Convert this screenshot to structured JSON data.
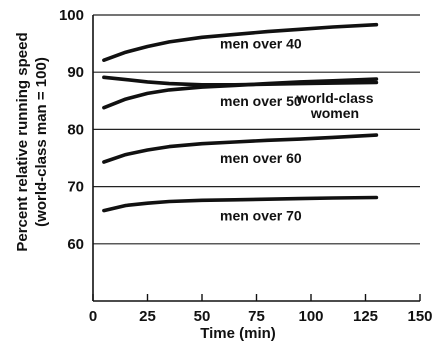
{
  "chart_data": {
    "type": "line",
    "title": "",
    "xlabel": "Time (min)",
    "ylabel": "Percent relative running speed",
    "ylabel_sub": "(world-class man = 100)",
    "xlim": [
      0,
      150
    ],
    "ylim": [
      50,
      100
    ],
    "x_ticks": [
      0,
      25,
      50,
      75,
      100,
      125,
      150
    ],
    "y_ticks": [
      60,
      70,
      80,
      90,
      100
    ],
    "grid": "horizontal",
    "legend": "none",
    "series": [
      {
        "name": "men over 40",
        "label_lines": [
          "men over 40"
        ],
        "color": "#111111",
        "x": [
          5,
          15,
          25,
          35,
          50,
          65,
          80,
          95,
          110,
          130
        ],
        "y": [
          92.1,
          93.5,
          94.5,
          95.3,
          96.1,
          96.6,
          97.1,
          97.5,
          97.9,
          98.3
        ]
      },
      {
        "name": "men over 50",
        "label_lines": [
          "men over 50"
        ],
        "color": "#111111",
        "x": [
          5,
          15,
          25,
          35,
          50,
          65,
          80,
          95,
          110,
          130
        ],
        "y": [
          83.8,
          85.3,
          86.3,
          86.9,
          87.4,
          87.7,
          88.0,
          88.3,
          88.5,
          88.8
        ]
      },
      {
        "name": "world-class women",
        "label_lines": [
          "world-class",
          "women"
        ],
        "color": "#111111",
        "x": [
          5,
          15,
          25,
          35,
          50,
          65,
          80,
          95,
          110,
          130
        ],
        "y": [
          89.1,
          88.7,
          88.3,
          88.0,
          87.8,
          87.8,
          87.9,
          88.0,
          88.1,
          88.2
        ]
      },
      {
        "name": "men over 60",
        "label_lines": [
          "men over 60"
        ],
        "color": "#111111",
        "x": [
          5,
          15,
          25,
          35,
          50,
          65,
          80,
          95,
          110,
          130
        ],
        "y": [
          74.3,
          75.6,
          76.4,
          77.0,
          77.5,
          77.8,
          78.1,
          78.3,
          78.6,
          79.0
        ]
      },
      {
        "name": "men over 70",
        "label_lines": [
          "men over 70"
        ],
        "color": "#111111",
        "x": [
          5,
          15,
          25,
          35,
          50,
          65,
          80,
          95,
          110,
          130
        ],
        "y": [
          65.8,
          66.7,
          67.1,
          67.4,
          67.6,
          67.7,
          67.8,
          67.9,
          68.0,
          68.1
        ]
      }
    ]
  }
}
